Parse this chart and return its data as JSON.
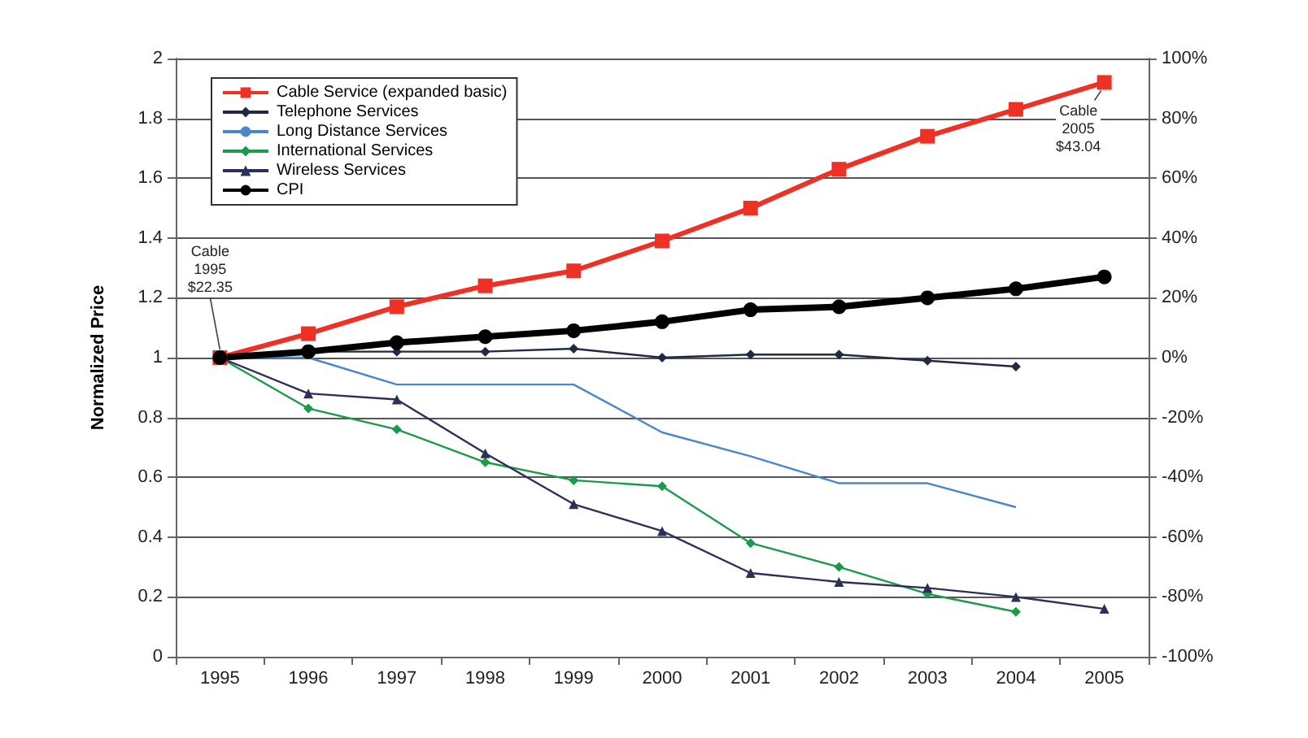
{
  "chart_data": {
    "type": "line",
    "ylabel": "Normalized Price",
    "categories": [
      "1995",
      "1996",
      "1997",
      "1998",
      "1999",
      "2000",
      "2001",
      "2002",
      "2003",
      "2004",
      "2005"
    ],
    "series": [
      {
        "name": "Cable Service (expanded basic)",
        "color": "#ee3124",
        "marker": "square",
        "values": [
          1,
          1.08,
          1.17,
          1.24,
          1.29,
          1.39,
          1.5,
          1.63,
          1.74,
          1.83,
          1.92
        ]
      },
      {
        "name": "Telephone Services",
        "color": "#1f2a44",
        "marker": "diamond",
        "values": [
          1,
          1.02,
          1.02,
          1.02,
          1.03,
          1.0,
          1.01,
          1.01,
          0.99,
          0.97,
          null
        ]
      },
      {
        "name": "Long Distance Services",
        "color": "#4a86c8",
        "marker": "none",
        "values": [
          1,
          1.0,
          0.91,
          0.91,
          0.91,
          0.75,
          0.67,
          0.58,
          0.58,
          0.5,
          null
        ]
      },
      {
        "name": "International Services",
        "color": "#1a9a4a",
        "marker": "diamond",
        "values": [
          1,
          0.83,
          0.76,
          0.65,
          0.59,
          0.57,
          0.38,
          0.3,
          0.21,
          0.15,
          null
        ]
      },
      {
        "name": "Wireless Services",
        "color": "#2b2f5a",
        "marker": "triangle",
        "values": [
          1,
          0.88,
          0.86,
          0.68,
          0.51,
          0.42,
          0.28,
          0.25,
          0.23,
          0.2,
          0.16
        ]
      },
      {
        "name": "CPI",
        "color": "#000000",
        "marker": "circle",
        "values": [
          1,
          1.02,
          1.05,
          1.07,
          1.09,
          1.12,
          1.16,
          1.17,
          1.2,
          1.23,
          1.27
        ]
      }
    ],
    "ylim": [
      0,
      2
    ],
    "yticks": [
      0,
      0.2,
      0.4,
      0.6,
      0.8,
      1,
      1.2,
      1.4,
      1.6,
      1.8,
      2
    ],
    "y2lim": [
      -100,
      100
    ],
    "y2ticks": [
      {
        "value": -100,
        "label": "-100%"
      },
      {
        "value": -80,
        "label": "-80%"
      },
      {
        "value": -60,
        "label": "-60%"
      },
      {
        "value": -40,
        "label": "-40%"
      },
      {
        "value": -20,
        "label": "-20%"
      },
      {
        "value": 0,
        "label": "0%"
      },
      {
        "value": 20,
        "label": "20%"
      },
      {
        "value": 40,
        "label": "40%"
      },
      {
        "value": 60,
        "label": "60%"
      },
      {
        "value": 80,
        "label": "80%"
      },
      {
        "value": 100,
        "label": "100%"
      }
    ],
    "annotations": [
      {
        "text": "Cable\n1995\n$22.35",
        "x": "1995",
        "y": 1
      },
      {
        "text": "Cable\n2005\n$43.04",
        "x": "2005",
        "y": 1.92
      }
    ],
    "grid": "y",
    "legend": "top left"
  }
}
